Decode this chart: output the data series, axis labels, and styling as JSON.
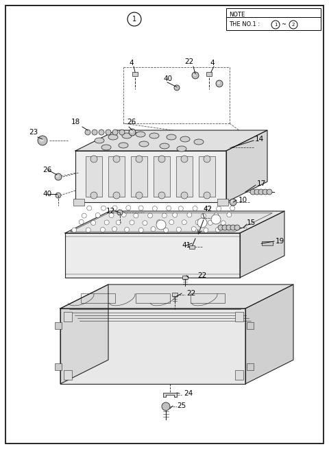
{
  "bg_color": "#ffffff",
  "border_color": "#000000",
  "line_color": "#222222",
  "text_color": "#000000",
  "fig_width": 4.8,
  "fig_height": 6.55,
  "dpi": 100
}
